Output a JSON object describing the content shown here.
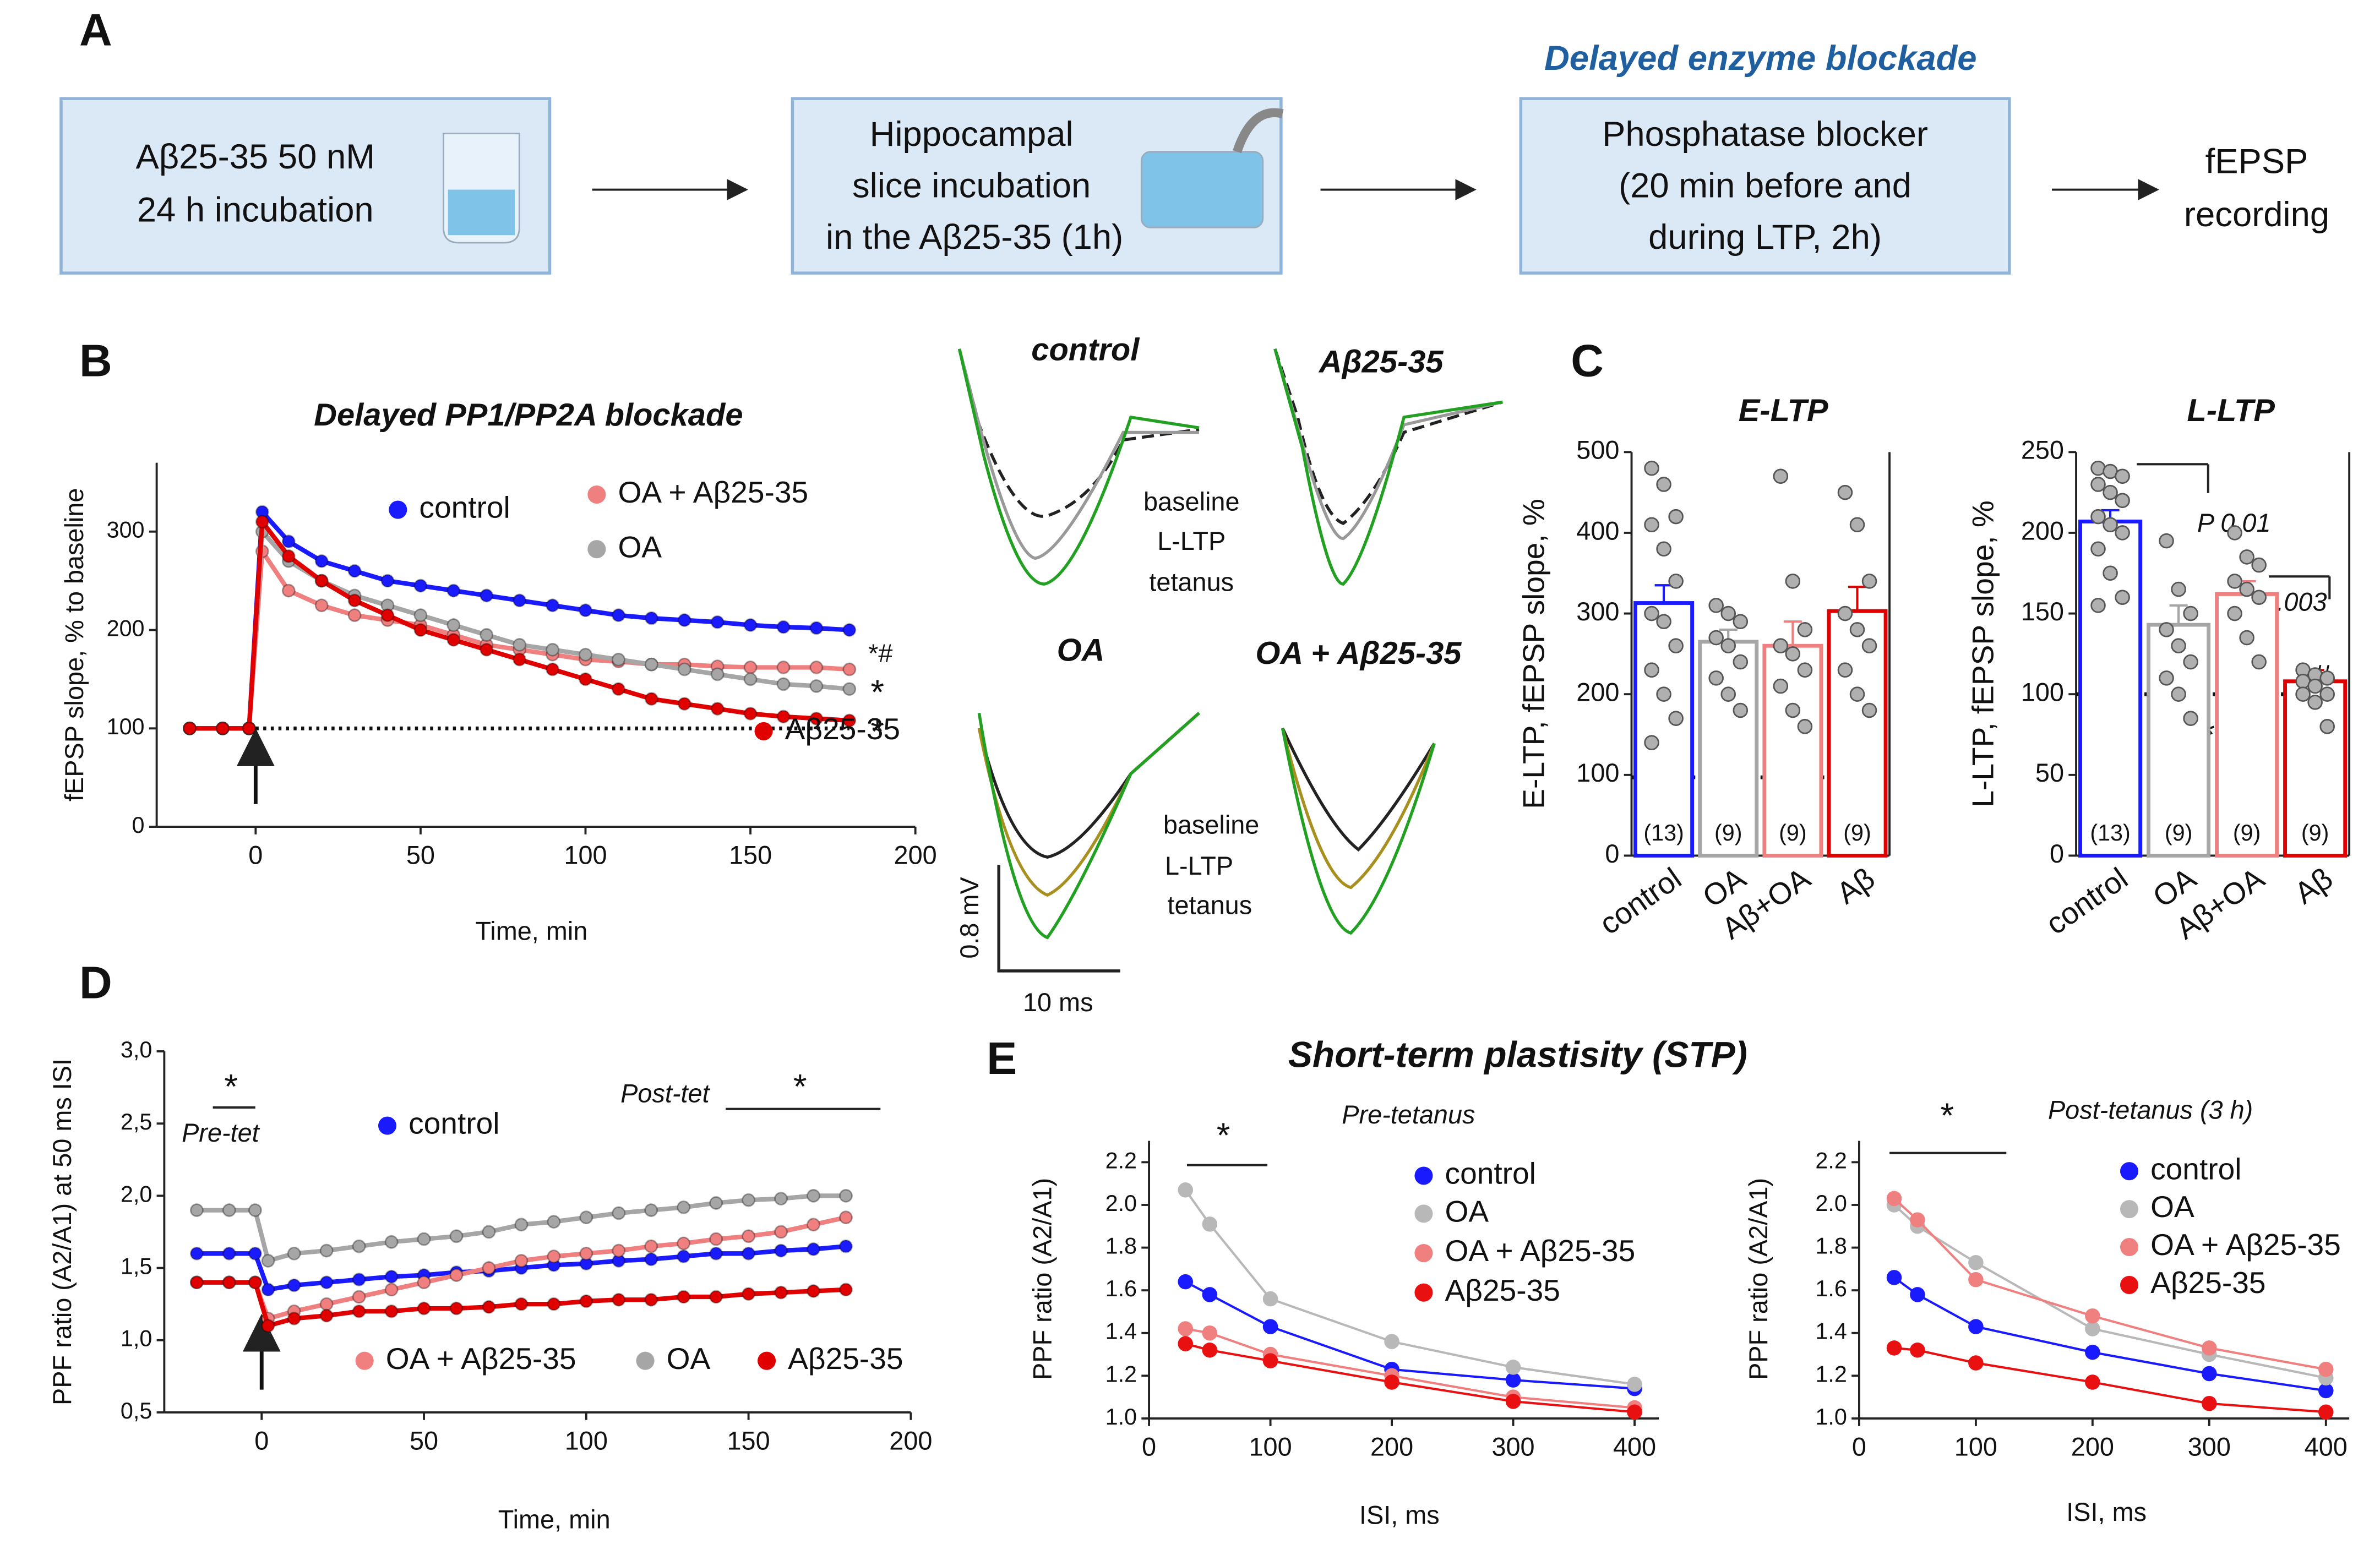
{
  "panels": [
    "A",
    "B",
    "C",
    "D",
    "E"
  ],
  "flow_heading": "Delayed enzyme blockade",
  "flow": [
    [
      "Aβ25-35 50 nM",
      "24 h incubation"
    ],
    [
      "Hippocampal",
      "slice incubation",
      "in the Aβ25-35 (1h)"
    ],
    [
      "Phosphatase blocker",
      "(20 min before and",
      "during LTP, 2h)"
    ],
    [
      "fEPSP",
      "recording"
    ]
  ],
  "traces": {
    "titles": [
      "control",
      "Aβ25-35",
      "OA",
      "OA + Aβ25-35"
    ],
    "labels": [
      "baseline",
      "L-LTP",
      "tetanus"
    ],
    "scale_y": "0.8 mV",
    "scale_x": "10 ms"
  },
  "stp_title": "Short-term plastisity (STP)",
  "chart_data": [
    {
      "type": "line",
      "title": "Delayed PP1/PP2A blockade",
      "x_label": "Time, min",
      "y_label": "fEPSP slope, % to baseline",
      "x": [
        -20,
        -10,
        -2,
        2,
        10,
        20,
        30,
        40,
        50,
        60,
        70,
        80,
        90,
        100,
        110,
        120,
        130,
        140,
        150,
        160,
        170,
        180
      ],
      "xlim": [
        -30,
        200
      ],
      "xticks": [
        0,
        50,
        100,
        150,
        200
      ],
      "ylim": [
        0,
        370
      ],
      "yticks": [
        0,
        100,
        200,
        300
      ],
      "reference_line": 100,
      "arrow_x": 0,
      "series": [
        {
          "name": "control",
          "color": "#1a1aff",
          "values": [
            100,
            100,
            100,
            320,
            290,
            270,
            260,
            250,
            245,
            240,
            235,
            230,
            225,
            220,
            215,
            212,
            210,
            208,
            205,
            203,
            202,
            200
          ]
        },
        {
          "name": "OA + Aβ25-35",
          "color": "#f08080",
          "values": [
            100,
            100,
            100,
            280,
            240,
            225,
            215,
            210,
            205,
            195,
            185,
            180,
            175,
            170,
            168,
            165,
            165,
            163,
            162,
            162,
            162,
            160
          ]
        },
        {
          "name": "OA",
          "color": "#a6a6a6",
          "values": [
            100,
            100,
            100,
            300,
            270,
            250,
            235,
            225,
            215,
            205,
            195,
            185,
            180,
            175,
            170,
            165,
            160,
            155,
            150,
            145,
            143,
            140
          ]
        },
        {
          "name": "Aβ25-35",
          "color": "#e00000",
          "values": [
            100,
            100,
            100,
            310,
            275,
            250,
            230,
            215,
            200,
            190,
            180,
            170,
            160,
            150,
            140,
            130,
            125,
            120,
            115,
            112,
            110,
            108
          ]
        }
      ],
      "annotations": [
        "*#",
        "*",
        "*"
      ]
    },
    {
      "type": "bar",
      "title": "E-LTP",
      "y_label": "E-LTP, fEPSP slope, %",
      "categories": [
        "control",
        "OA",
        "Aβ+OA",
        "Aβ"
      ],
      "values": [
        313,
        265,
        260,
        303
      ],
      "errors": [
        22,
        15,
        30,
        30
      ],
      "colors": [
        "#1a1aff",
        "#a6a6a6",
        "#f08080",
        "#e00000"
      ],
      "points": [
        [
          480,
          460,
          420,
          410,
          380,
          340,
          300,
          290,
          260,
          230,
          200,
          170,
          140
        ],
        [
          310,
          300,
          290,
          270,
          260,
          240,
          220,
          200,
          180
        ],
        [
          470,
          340,
          280,
          260,
          250,
          230,
          210,
          180,
          160
        ],
        [
          450,
          410,
          340,
          300,
          280,
          260,
          230,
          200,
          180
        ]
      ],
      "n_labels": [
        "(13)",
        "(9)",
        "(9)",
        "(9)"
      ],
      "ylim": [
        0,
        500
      ],
      "yticks": [
        0,
        100,
        200,
        300,
        400,
        500
      ],
      "reference_line": 97
    },
    {
      "type": "bar",
      "title": "L-LTP",
      "y_label": "L-LTP, fEPSP slope, %",
      "categories": [
        "control",
        "OA",
        "Aβ+OA",
        "Aβ"
      ],
      "values": [
        207,
        143,
        162,
        108
      ],
      "errors": [
        7,
        12,
        8,
        7
      ],
      "colors": [
        "#1a1aff",
        "#a6a6a6",
        "#f08080",
        "#e00000"
      ],
      "points": [
        [
          240,
          238,
          235,
          230,
          225,
          220,
          210,
          205,
          200,
          190,
          175,
          160,
          155
        ],
        [
          195,
          165,
          150,
          140,
          130,
          120,
          110,
          100,
          85
        ],
        [
          200,
          185,
          180,
          170,
          165,
          160,
          150,
          135,
          120
        ],
        [
          115,
          112,
          110,
          108,
          105,
          100,
          100,
          95,
          80
        ]
      ],
      "n_labels": [
        "(13)",
        "(9)",
        "(9)",
        "(9)"
      ],
      "ylim": [
        0,
        250
      ],
      "yticks": [
        0,
        50,
        100,
        150,
        200,
        250
      ],
      "reference_line": 100,
      "annotations": [
        "P 0.01",
        "0.003",
        "*",
        "*",
        "*",
        "#"
      ]
    },
    {
      "type": "line",
      "x_label": "Time, min",
      "y_label": "PPF ratio (A2/A1) at 50 ms ISI",
      "x": [
        -20,
        -10,
        -2,
        2,
        10,
        20,
        30,
        40,
        50,
        60,
        70,
        80,
        90,
        100,
        110,
        120,
        130,
        140,
        150,
        160,
        170,
        180
      ],
      "xlim": [
        -30,
        200
      ],
      "xticks": [
        0,
        50,
        100,
        150,
        200
      ],
      "ylim": [
        0.5,
        3.0
      ],
      "yticks": [
        {
          "value": 0.5,
          "label": "0,5"
        },
        {
          "value": 1.0,
          "label": "1,0"
        },
        {
          "value": 1.5,
          "label": "1,5"
        },
        {
          "value": 2.0,
          "label": "2,0"
        },
        {
          "value": 2.5,
          "label": "2,5"
        },
        {
          "value": 3.0,
          "label": "3,0"
        }
      ],
      "arrow_x": 0,
      "series": [
        {
          "name": "control",
          "color": "#1a1aff",
          "values": [
            1.6,
            1.6,
            1.6,
            1.35,
            1.38,
            1.4,
            1.42,
            1.44,
            1.45,
            1.47,
            1.48,
            1.5,
            1.52,
            1.53,
            1.55,
            1.56,
            1.58,
            1.6,
            1.6,
            1.62,
            1.63,
            1.65
          ]
        },
        {
          "name": "OA + Aβ25-35",
          "color": "#f08080",
          "values": [
            1.4,
            1.4,
            1.4,
            1.15,
            1.2,
            1.25,
            1.3,
            1.35,
            1.4,
            1.45,
            1.5,
            1.55,
            1.58,
            1.6,
            1.62,
            1.65,
            1.67,
            1.7,
            1.72,
            1.75,
            1.8,
            1.85
          ]
        },
        {
          "name": "OA",
          "color": "#a6a6a6",
          "values": [
            1.9,
            1.9,
            1.9,
            1.55,
            1.6,
            1.62,
            1.65,
            1.68,
            1.7,
            1.72,
            1.75,
            1.8,
            1.82,
            1.85,
            1.88,
            1.9,
            1.92,
            1.95,
            1.97,
            1.98,
            2.0,
            2.0
          ]
        },
        {
          "name": "Aβ25-35",
          "color": "#e00000",
          "values": [
            1.4,
            1.4,
            1.4,
            1.1,
            1.15,
            1.17,
            1.2,
            1.2,
            1.22,
            1.22,
            1.23,
            1.25,
            1.25,
            1.27,
            1.28,
            1.28,
            1.3,
            1.3,
            1.32,
            1.33,
            1.34,
            1.35
          ]
        }
      ],
      "annotations": [
        "*",
        "Pre-tet",
        "Post-tet",
        "*"
      ]
    },
    {
      "type": "line",
      "title": "Pre-tetanus",
      "x_label": "ISI, ms",
      "y_label": "PPF ratio (A2/A1)",
      "x": [
        30,
        50,
        100,
        200,
        300,
        400
      ],
      "xlim": [
        0,
        420
      ],
      "xticks": [
        0,
        100,
        200,
        300,
        400
      ],
      "ylim": [
        1.0,
        2.3
      ],
      "yticks": [
        {
          "value": 1.0,
          "label": "1.0"
        },
        1.2,
        1.4,
        1.6,
        1.8,
        {
          "value": 2.0,
          "label": "2.0"
        },
        2.2
      ],
      "series": [
        {
          "name": "control",
          "color": "#1a1aff",
          "values": [
            1.64,
            1.58,
            1.43,
            1.23,
            1.18,
            1.14
          ]
        },
        {
          "name": "OA",
          "color": "#b8b8b8",
          "values": [
            2.07,
            1.91,
            1.56,
            1.36,
            1.24,
            1.16
          ]
        },
        {
          "name": "OA + Aβ25-35",
          "color": "#f08080",
          "values": [
            1.42,
            1.4,
            1.3,
            1.2,
            1.1,
            1.05
          ]
        },
        {
          "name": "Aβ25-35",
          "color": "#e81010",
          "values": [
            1.35,
            1.32,
            1.27,
            1.17,
            1.08,
            1.03
          ]
        }
      ],
      "annotations": [
        "*"
      ]
    },
    {
      "type": "line",
      "title": "Post-tetanus (3 h)",
      "x_label": "ISI, ms",
      "y_label": "PPF ratio (A2/A1)",
      "x": [
        30,
        50,
        100,
        200,
        300,
        400
      ],
      "xlim": [
        0,
        420
      ],
      "xticks": [
        0,
        100,
        200,
        300,
        400
      ],
      "ylim": [
        1.0,
        2.3
      ],
      "yticks": [
        {
          "value": 1.0,
          "label": "1.0"
        },
        1.2,
        1.4,
        1.6,
        1.8,
        {
          "value": 2.0,
          "label": "2.0"
        },
        2.2
      ],
      "series": [
        {
          "name": "control",
          "color": "#1a1aff",
          "values": [
            1.66,
            1.58,
            1.43,
            1.31,
            1.21,
            1.13
          ]
        },
        {
          "name": "OA",
          "color": "#b8b8b8",
          "values": [
            2.0,
            1.9,
            1.73,
            1.42,
            1.3,
            1.19
          ]
        },
        {
          "name": "OA + Aβ25-35",
          "color": "#f08080",
          "values": [
            2.03,
            1.93,
            1.65,
            1.48,
            1.33,
            1.23
          ]
        },
        {
          "name": "Aβ25-35",
          "color": "#e81010",
          "values": [
            1.33,
            1.32,
            1.26,
            1.17,
            1.07,
            1.03
          ]
        }
      ],
      "annotations": [
        "*"
      ]
    }
  ]
}
